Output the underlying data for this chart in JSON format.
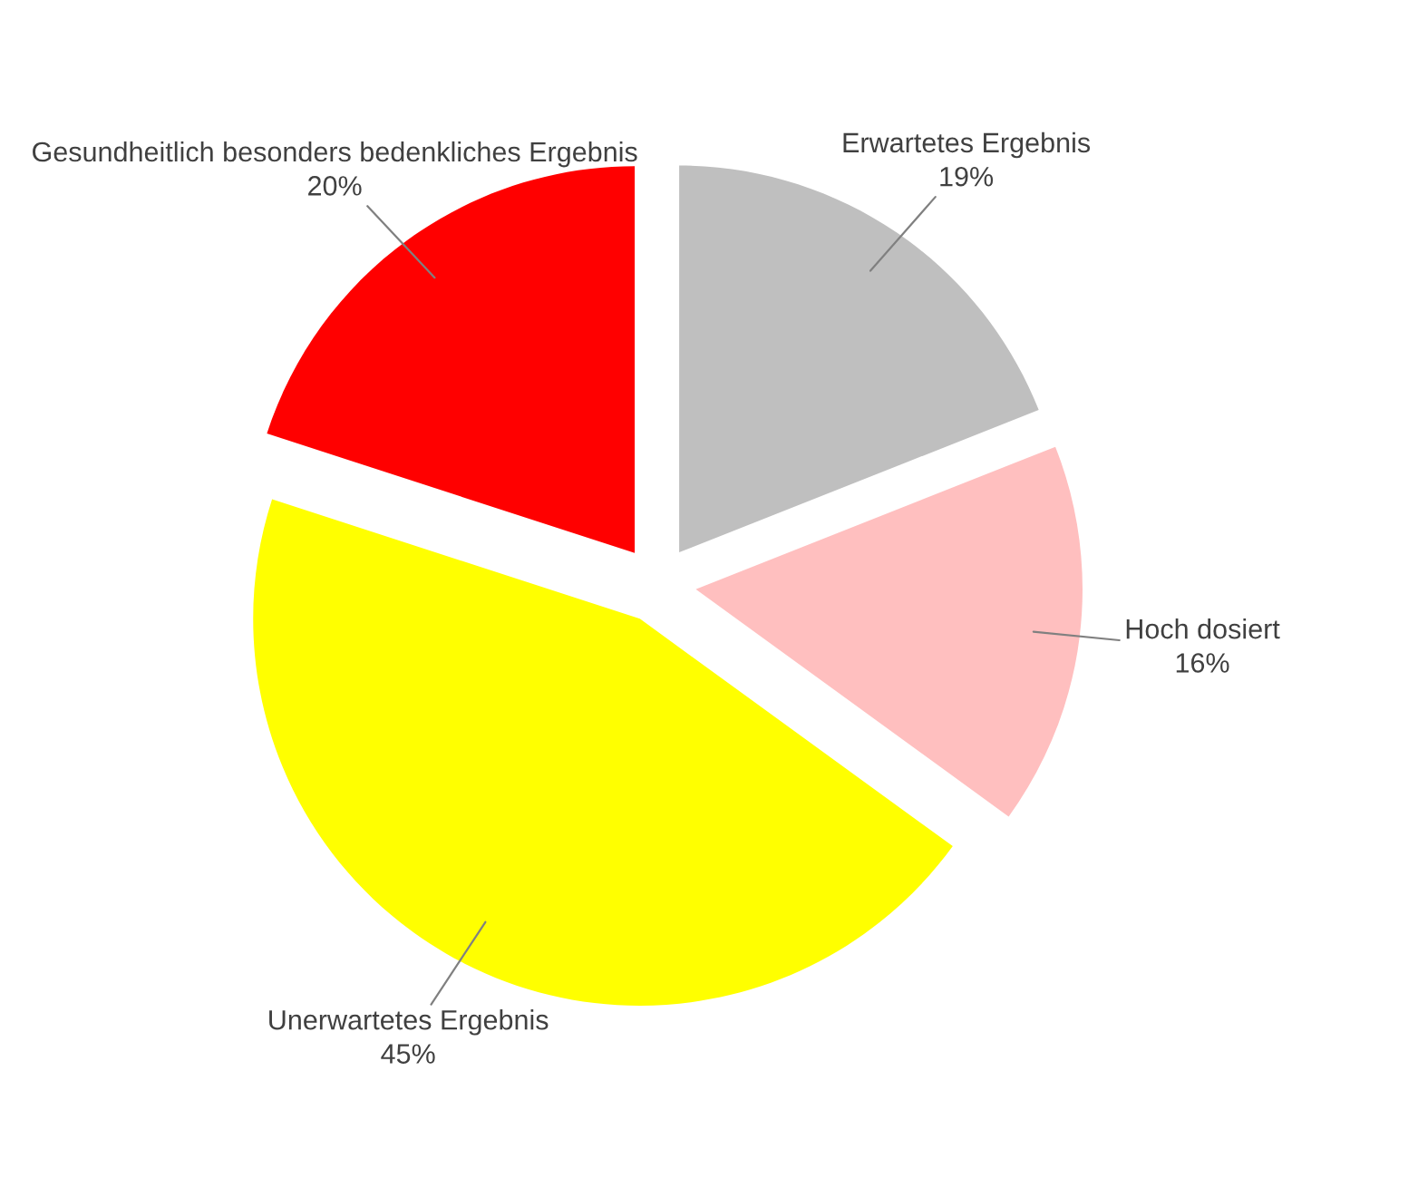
{
  "chart_data": {
    "type": "pie",
    "categories": [
      "Erwartetes Ergebnis",
      "Hoch dosiert",
      "Unerwartetes Ergebnis",
      "Gesundheitlich besonders bedenkliches Ergebnis"
    ],
    "values": [
      19,
      16,
      45,
      20
    ],
    "colors": [
      "#bfbfbf",
      "#ffbfbf",
      "#ffff00",
      "#ff0000"
    ],
    "value_labels": [
      "19%",
      "16%",
      "45%",
      "20%"
    ],
    "legend": false
  }
}
